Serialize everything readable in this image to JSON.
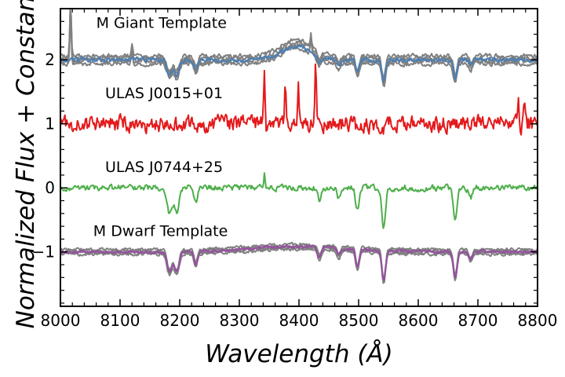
{
  "chart_data": {
    "type": "line",
    "title": "",
    "xlabel": "Wavelength (Å)",
    "ylabel": "Normalized Flux + Constant",
    "xlim": [
      8000,
      8800
    ],
    "ylim": [
      -1.85,
      2.8
    ],
    "xticks": [
      8000,
      8100,
      8200,
      8300,
      8400,
      8500,
      8600,
      8700,
      8800
    ],
    "xtick_labels": [
      "8000",
      "8100",
      "8200",
      "8300",
      "8400",
      "8500",
      "8600",
      "8700",
      "8800"
    ],
    "yticks": [
      2,
      1,
      0,
      -1
    ],
    "ytick_labels": [
      "2",
      "1",
      "0",
      "−1"
    ],
    "x_minor_step": 20,
    "y_minor_step": 0.2,
    "grid": false,
    "legend": "none",
    "annotations": [
      {
        "text": "M Giant Template",
        "x": 8060,
        "y": 2.5
      },
      {
        "text": "ULAS J0015+01",
        "x": 8075,
        "y": 1.4
      },
      {
        "text": "ULAS J0744+25",
        "x": 8075,
        "y": 0.25
      },
      {
        "text": "M Dwarf Template",
        "x": 8055,
        "y": -0.75
      }
    ],
    "absorption_lines": [
      {
        "center": 8183,
        "width": 4,
        "depth": 0.4
      },
      {
        "center": 8195,
        "width": 4,
        "depth": 0.4
      },
      {
        "center": 8227,
        "width": 3,
        "depth": 0.25
      },
      {
        "center": 8434,
        "width": 3,
        "depth": 0.2
      },
      {
        "center": 8467,
        "width": 3,
        "depth": 0.15
      },
      {
        "center": 8498,
        "width": 3,
        "depth": 0.35
      },
      {
        "center": 8542,
        "width": 3,
        "depth": 0.6
      },
      {
        "center": 8662,
        "width": 3,
        "depth": 0.5
      },
      {
        "center": 8688,
        "width": 3,
        "depth": 0.15
      }
    ],
    "series": [
      {
        "name": "M Giant Template (individual spectra)",
        "color": "#808080",
        "offset": 2,
        "copies": 4,
        "copy_spread": 0.04,
        "noise": 0.03,
        "line_strength": 0.6,
        "bump": {
          "center": 8395,
          "width": 25,
          "height": 0.25
        },
        "spikes": [
          {
            "x": 8017,
            "amp": 0.85
          },
          {
            "x": 8120,
            "amp": 0.2
          },
          {
            "x": 8420,
            "amp": 0.2
          }
        ]
      },
      {
        "name": "M Giant Template",
        "color": "#4a7fb5",
        "offset": 2,
        "noise": 0.03,
        "line_strength": 0.6,
        "bump": {
          "center": 8395,
          "width": 25,
          "height": 0.2
        },
        "spikes": []
      },
      {
        "name": "ULAS J0015+01",
        "color": "#e41a1c",
        "offset": 1,
        "noise": 0.11,
        "line_strength": 0.1,
        "bump": null,
        "spikes": [
          {
            "x": 8342,
            "amp": 0.86
          },
          {
            "x": 8377,
            "amp": 0.6
          },
          {
            "x": 8399,
            "amp": 0.7
          },
          {
            "x": 8428,
            "amp": 1.12
          },
          {
            "x": 8768,
            "amp": 0.5
          },
          {
            "x": 8778,
            "amp": 0.45
          }
        ]
      },
      {
        "name": "ULAS J0744+25",
        "color": "#4daf4a",
        "offset": 0,
        "noise": 0.04,
        "line_strength": 1,
        "bump": null,
        "spikes": [
          {
            "x": 8342,
            "amp": 0.22
          }
        ]
      },
      {
        "name": "M Dwarf Template (individual spectra)",
        "color": "#808080",
        "offset": -1,
        "copies": 4,
        "copy_spread": 0.025,
        "noise": 0.02,
        "line_strength": 0.8,
        "bump": {
          "center": 8400,
          "width": 80,
          "height": 0.08
        },
        "spikes": []
      },
      {
        "name": "M Dwarf Template",
        "color": "#984ea3",
        "offset": -1,
        "noise": 0.02,
        "line_strength": 0.8,
        "bump": {
          "center": 8400,
          "width": 80,
          "height": 0.08
        },
        "spikes": []
      }
    ]
  }
}
